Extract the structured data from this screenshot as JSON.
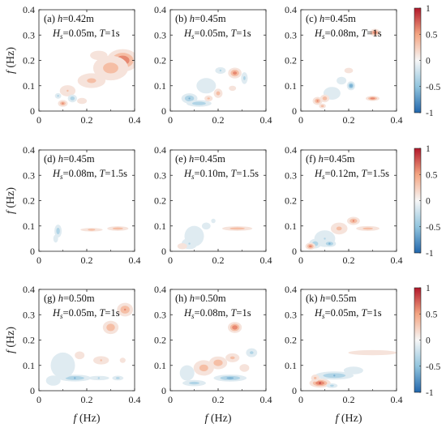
{
  "chart_data": {
    "type": "heatmap",
    "colormap": "red-white-blue (diverging)",
    "colors": {
      "positive": "#b2182b",
      "mid": "#f7f7f7",
      "negative": "#2166ac"
    },
    "xlabel": "f (Hz)",
    "ylabel": "f (Hz)",
    "xlim": [
      0,
      0.4
    ],
    "ylim": [
      0,
      0.4
    ],
    "xticks": [
      "0",
      "0.2",
      "0.4"
    ],
    "yticks": [
      "0",
      "0.1",
      "0.2",
      "0.3",
      "0.4"
    ],
    "colorbar": {
      "ticks": [
        "1",
        "0.5",
        "0",
        "-0.5",
        "-1"
      ],
      "range": [
        -1,
        1
      ]
    },
    "panels": [
      {
        "id": "a",
        "label": "(a) h=0.42m",
        "params": "Hs=0.05m, T=1s",
        "blobs": [
          [
            0.35,
            0.2,
            0.045,
            0.03,
            0.85
          ],
          [
            0.3,
            0.17,
            0.06,
            0.04,
            0.45
          ],
          [
            0.22,
            0.12,
            0.05,
            0.025,
            0.4
          ],
          [
            0.25,
            0.22,
            0.04,
            0.02,
            0.25
          ],
          [
            0.12,
            0.08,
            0.03,
            0.02,
            0.35
          ],
          [
            0.14,
            0.05,
            0.015,
            0.012,
            -0.5
          ],
          [
            0.1,
            0.03,
            0.015,
            0.01,
            0.6
          ],
          [
            0.08,
            0.06,
            0.012,
            0.01,
            -0.35
          ],
          [
            0.18,
            0.04,
            0.02,
            0.012,
            0.3
          ]
        ]
      },
      {
        "id": "b",
        "label": "(b) h=0.45m",
        "params": "Hs=0.05m, T=1s",
        "blobs": [
          [
            0.27,
            0.15,
            0.02,
            0.015,
            0.7
          ],
          [
            0.31,
            0.13,
            0.012,
            0.02,
            -0.4
          ],
          [
            0.21,
            0.16,
            0.02,
            0.012,
            -0.35
          ],
          [
            0.15,
            0.1,
            0.04,
            0.03,
            -0.3
          ],
          [
            0.08,
            0.05,
            0.025,
            0.015,
            -0.6
          ],
          [
            0.12,
            0.03,
            0.04,
            0.01,
            -0.55
          ],
          [
            0.2,
            0.07,
            0.015,
            0.015,
            0.45
          ],
          [
            0.16,
            0.05,
            0.015,
            0.01,
            0.4
          ],
          [
            0.26,
            0.09,
            0.015,
            0.01,
            0.3
          ]
        ]
      },
      {
        "id": "c",
        "label": "(c) h=0.45m",
        "params": "Hs=0.08m, T=1s",
        "blobs": [
          [
            0.31,
            0.31,
            0.015,
            0.01,
            0.8
          ],
          [
            0.3,
            0.05,
            0.02,
            0.007,
            0.75
          ],
          [
            0.21,
            0.1,
            0.012,
            0.012,
            -0.8
          ],
          [
            0.17,
            0.12,
            0.02,
            0.015,
            -0.3
          ],
          [
            0.13,
            0.07,
            0.035,
            0.025,
            -0.3
          ],
          [
            0.1,
            0.05,
            0.015,
            0.012,
            0.5
          ],
          [
            0.07,
            0.04,
            0.015,
            0.012,
            0.6
          ],
          [
            0.09,
            0.02,
            0.012,
            0.008,
            0.45
          ],
          [
            0.2,
            0.16,
            0.02,
            0.012,
            0.25
          ]
        ]
      },
      {
        "id": "d",
        "label": "(d) h=0.45m",
        "params": "Hs=0.08m, T=1.5s",
        "blobs": [
          [
            0.22,
            0.085,
            0.04,
            0.006,
            0.4
          ],
          [
            0.33,
            0.09,
            0.035,
            0.007,
            0.5
          ],
          [
            0.08,
            0.08,
            0.012,
            0.02,
            -0.5
          ],
          [
            0.07,
            0.05,
            0.01,
            0.015,
            -0.3
          ]
        ]
      },
      {
        "id": "e",
        "label": "(e) h=0.45m",
        "params": "Hs=0.10m, T=1.5s",
        "blobs": [
          [
            0.28,
            0.09,
            0.05,
            0.007,
            0.5
          ],
          [
            0.1,
            0.06,
            0.04,
            0.04,
            -0.3
          ],
          [
            0.08,
            0.03,
            0.03,
            0.02,
            -0.35
          ],
          [
            0.15,
            0.1,
            0.02,
            0.015,
            -0.25
          ],
          [
            0.05,
            0.02,
            0.02,
            0.012,
            0.3
          ],
          [
            0.18,
            0.12,
            0.012,
            0.012,
            -0.2
          ]
        ]
      },
      {
        "id": "f",
        "label": "(f) h=0.45m",
        "params": "Hs=0.12m, T=1.5s",
        "blobs": [
          [
            0.22,
            0.12,
            0.02,
            0.012,
            0.6
          ],
          [
            0.28,
            0.09,
            0.04,
            0.008,
            0.45
          ],
          [
            0.16,
            0.09,
            0.03,
            0.02,
            0.4
          ],
          [
            0.1,
            0.05,
            0.04,
            0.03,
            -0.35
          ],
          [
            0.06,
            0.03,
            0.02,
            0.015,
            -0.5
          ],
          [
            0.04,
            0.02,
            0.015,
            0.01,
            0.7
          ],
          [
            0.12,
            0.03,
            0.02,
            0.01,
            -0.6
          ]
        ]
      },
      {
        "id": "g",
        "label": "(g) h=0.50m",
        "params": "Hs=0.05m, T=1s",
        "blobs": [
          [
            0.36,
            0.32,
            0.025,
            0.02,
            0.6
          ],
          [
            0.3,
            0.25,
            0.025,
            0.02,
            0.55
          ],
          [
            0.26,
            0.12,
            0.03,
            0.015,
            0.35
          ],
          [
            0.15,
            0.05,
            0.05,
            0.01,
            -0.6
          ],
          [
            0.25,
            0.05,
            0.04,
            0.008,
            -0.35
          ],
          [
            0.1,
            0.1,
            0.05,
            0.05,
            -0.3
          ],
          [
            0.06,
            0.04,
            0.03,
            0.02,
            -0.3
          ],
          [
            0.17,
            0.14,
            0.02,
            0.015,
            0.3
          ],
          [
            0.33,
            0.05,
            0.02,
            0.008,
            -0.4
          ],
          [
            0.35,
            0.12,
            0.012,
            0.01,
            0.3
          ]
        ]
      },
      {
        "id": "h",
        "label": "(h) h=0.50m",
        "params": "Hs=0.08m, T=1s",
        "blobs": [
          [
            0.27,
            0.25,
            0.02,
            0.015,
            0.8
          ],
          [
            0.2,
            0.11,
            0.03,
            0.02,
            0.5
          ],
          [
            0.26,
            0.13,
            0.025,
            0.015,
            0.4
          ],
          [
            0.25,
            0.05,
            0.05,
            0.01,
            -0.65
          ],
          [
            0.34,
            0.15,
            0.02,
            0.015,
            -0.4
          ],
          [
            0.14,
            0.09,
            0.035,
            0.025,
            0.45
          ],
          [
            0.1,
            0.03,
            0.04,
            0.01,
            -0.45
          ],
          [
            0.07,
            0.07,
            0.03,
            0.03,
            -0.3
          ],
          [
            0.31,
            0.09,
            0.02,
            0.015,
            0.3
          ]
        ]
      },
      {
        "id": "k",
        "label": "(k) h=0.55m",
        "params": "Hs=0.05m, T=1s",
        "blobs": [
          [
            0.3,
            0.15,
            0.1,
            0.01,
            0.3
          ],
          [
            0.14,
            0.06,
            0.06,
            0.012,
            -0.6
          ],
          [
            0.08,
            0.03,
            0.03,
            0.012,
            0.85
          ],
          [
            0.13,
            0.02,
            0.02,
            0.008,
            -0.4
          ],
          [
            0.22,
            0.08,
            0.04,
            0.015,
            -0.3
          ],
          [
            0.06,
            0.05,
            0.015,
            0.012,
            0.4
          ]
        ]
      }
    ],
    "blob_format": "[f_x (Hz), f_y (Hz), sigma_x (Hz), sigma_y (Hz), peak value]"
  }
}
